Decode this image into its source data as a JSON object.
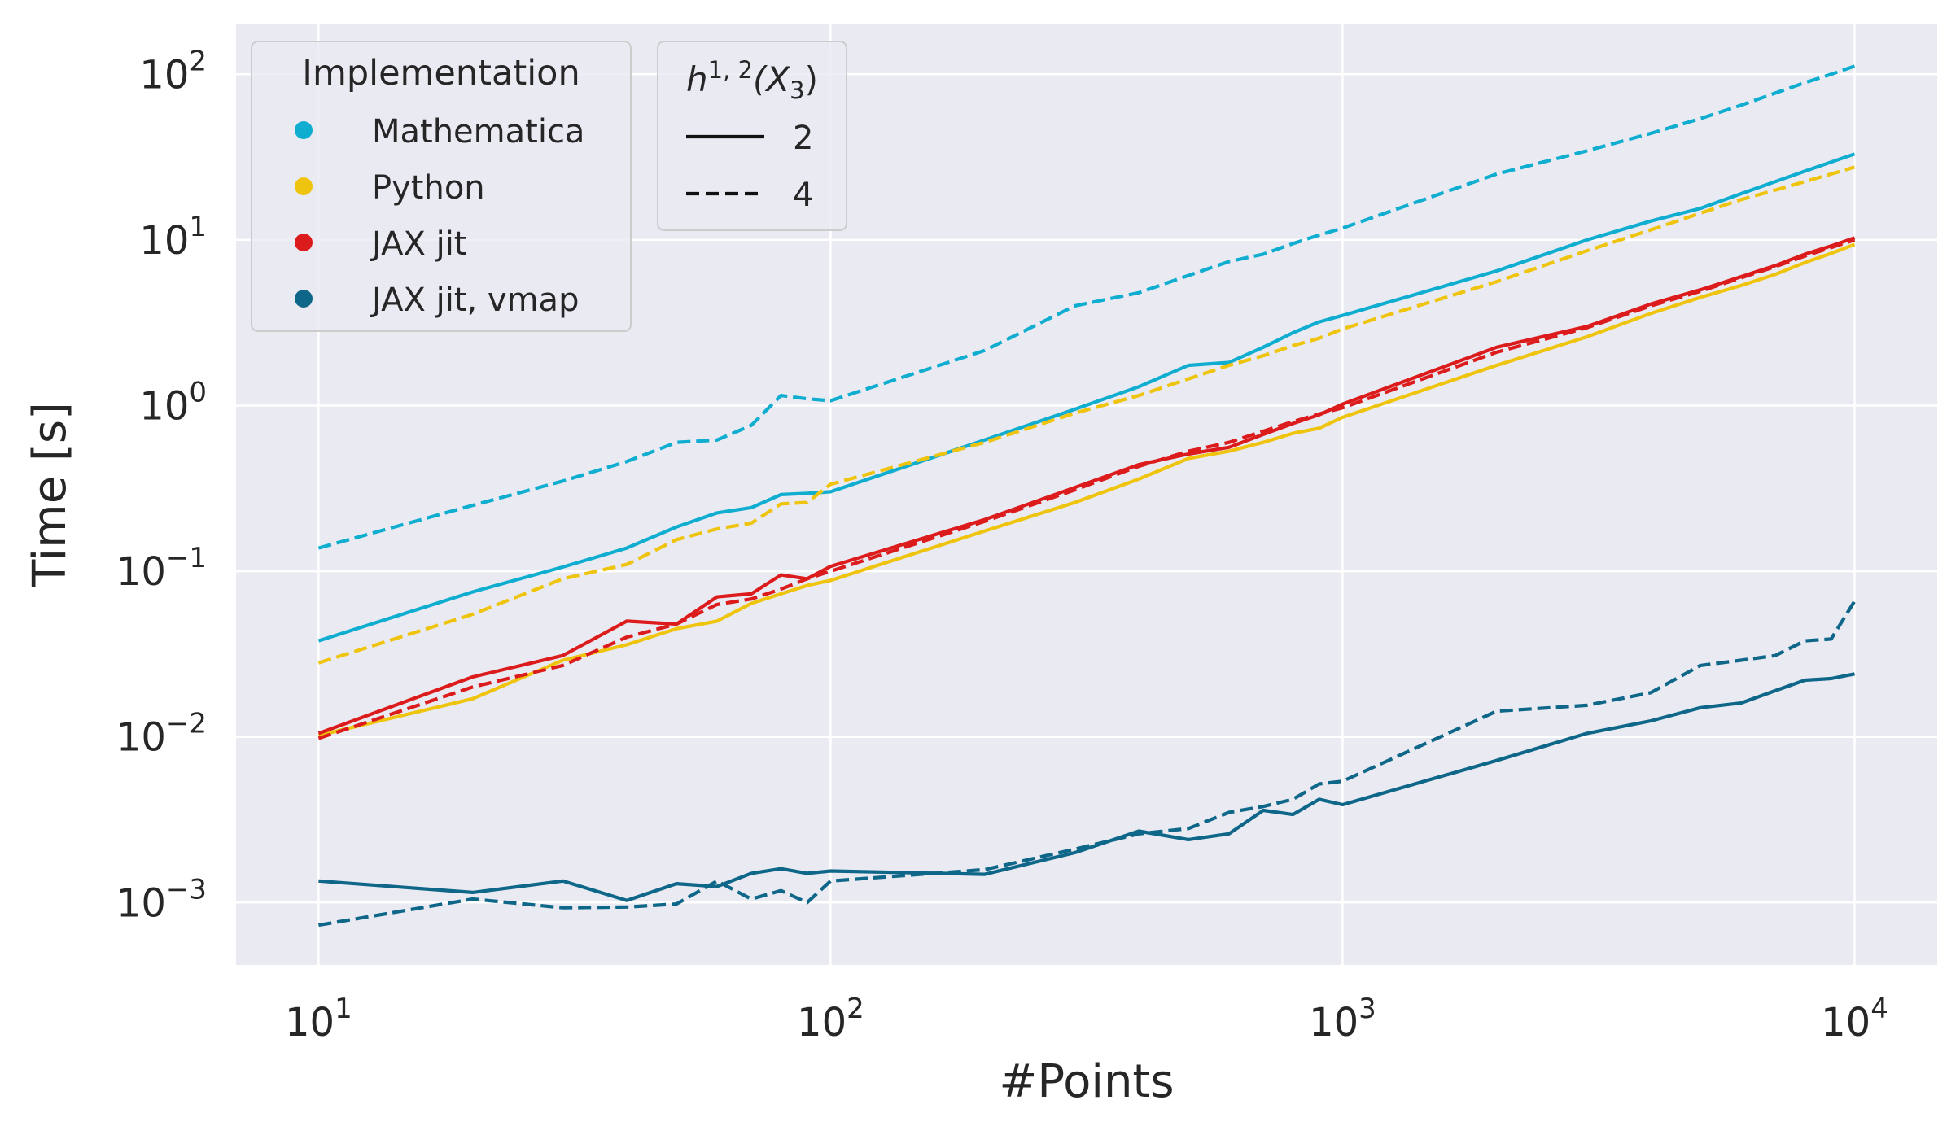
{
  "chart_data": {
    "type": "line",
    "xscale": "log",
    "yscale": "log",
    "xlim": [
      6.9,
      14500
    ],
    "ylim": [
      0.00042,
      200
    ],
    "xlabel": "#Points",
    "ylabel": "Time [s]",
    "x_ticks": [
      {
        "value": 10,
        "base": "10",
        "exp": "1"
      },
      {
        "value": 100,
        "base": "10",
        "exp": "2"
      },
      {
        "value": 1000,
        "base": "10",
        "exp": "3"
      },
      {
        "value": 10000,
        "base": "10",
        "exp": "4"
      }
    ],
    "y_ticks": [
      {
        "value": 0.001,
        "base": "10",
        "exp": "−3"
      },
      {
        "value": 0.01,
        "base": "10",
        "exp": "−2"
      },
      {
        "value": 0.1,
        "base": "10",
        "exp": "−1"
      },
      {
        "value": 1,
        "base": "10",
        "exp": "0"
      },
      {
        "value": 10,
        "base": "10",
        "exp": "1"
      },
      {
        "value": 100,
        "base": "10",
        "exp": "2"
      }
    ],
    "grid": true,
    "colors": {
      "Mathematica": "#0fadcf",
      "Python": "#efc40e",
      "JAX jit": "#dc1c1c",
      "JAX jit, vmap": "#0e6688"
    },
    "legend_implementation": {
      "title": "Implementation",
      "placement": "top-left",
      "entries": [
        "Mathematica",
        "Python",
        "JAX jit",
        "JAX jit, vmap"
      ]
    },
    "legend_h": {
      "title_base": "h",
      "title_sup": "1, 2",
      "title_paren": "(X",
      "title_sub": "3",
      "title_close": ")",
      "entries": [
        {
          "label": "2",
          "dash": "solid"
        },
        {
          "label": "4",
          "dash": "dashed"
        }
      ]
    },
    "series": [
      {
        "name": "Mathematica",
        "h": "2",
        "dash": "solid",
        "x": [
          10,
          20,
          30,
          40,
          50,
          60,
          70,
          80,
          90,
          100,
          200,
          300,
          400,
          500,
          600,
          700,
          800,
          900,
          1000,
          2000,
          3000,
          4000,
          5000,
          6000,
          7000,
          8000,
          9000,
          10000
        ],
        "y": [
          0.038,
          0.075,
          0.106,
          0.138,
          0.185,
          0.225,
          0.242,
          0.29,
          0.295,
          0.302,
          0.62,
          0.95,
          1.3,
          1.75,
          1.82,
          2.25,
          2.75,
          3.2,
          3.5,
          6.5,
          10.0,
          13.0,
          15.5,
          19.0,
          22.5,
          26.0,
          29.5,
          33.0
        ]
      },
      {
        "name": "Mathematica",
        "h": "4",
        "dash": "dashed",
        "x": [
          10,
          20,
          30,
          40,
          50,
          60,
          70,
          80,
          90,
          100,
          200,
          300,
          400,
          500,
          600,
          700,
          800,
          900,
          1000,
          2000,
          3000,
          4000,
          5000,
          6000,
          7000,
          8000,
          9000,
          10000
        ],
        "y": [
          0.138,
          0.25,
          0.35,
          0.46,
          0.6,
          0.62,
          0.76,
          1.15,
          1.1,
          1.07,
          2.15,
          4.0,
          4.8,
          6.1,
          7.4,
          8.2,
          9.5,
          10.7,
          11.8,
          25.0,
          34.5,
          44.0,
          54.0,
          65.0,
          77.0,
          89.0,
          100.0,
          112.0
        ]
      },
      {
        "name": "Python",
        "h": "2",
        "dash": "solid",
        "x": [
          10,
          20,
          30,
          40,
          50,
          60,
          70,
          80,
          90,
          100,
          200,
          300,
          400,
          500,
          600,
          700,
          800,
          900,
          1000,
          2000,
          3000,
          4000,
          5000,
          6000,
          7000,
          8000,
          9000,
          10000
        ],
        "y": [
          0.0102,
          0.017,
          0.029,
          0.036,
          0.045,
          0.05,
          0.064,
          0.073,
          0.082,
          0.088,
          0.175,
          0.26,
          0.36,
          0.48,
          0.53,
          0.6,
          0.68,
          0.73,
          0.85,
          1.75,
          2.6,
          3.6,
          4.5,
          5.3,
          6.2,
          7.3,
          8.3,
          9.4
        ]
      },
      {
        "name": "Python",
        "h": "4",
        "dash": "dashed",
        "x": [
          10,
          20,
          30,
          40,
          50,
          60,
          70,
          80,
          90,
          100,
          200,
          300,
          400,
          500,
          600,
          700,
          800,
          900,
          1000,
          2000,
          3000,
          4000,
          5000,
          6000,
          7000,
          8000,
          9000,
          10000
        ],
        "y": [
          0.028,
          0.055,
          0.09,
          0.11,
          0.155,
          0.18,
          0.195,
          0.255,
          0.26,
          0.335,
          0.6,
          0.9,
          1.15,
          1.45,
          1.75,
          2.0,
          2.3,
          2.55,
          2.9,
          5.6,
          8.6,
          11.5,
          14.5,
          17.5,
          20.0,
          22.5,
          25.0,
          27.5
        ]
      },
      {
        "name": "JAX jit",
        "h": "2",
        "dash": "solid",
        "x": [
          10,
          20,
          30,
          40,
          50,
          60,
          70,
          80,
          90,
          100,
          200,
          300,
          400,
          500,
          600,
          700,
          800,
          900,
          1000,
          2000,
          3000,
          4000,
          5000,
          6000,
          7000,
          8000,
          9000,
          10000
        ],
        "y": [
          0.0105,
          0.023,
          0.031,
          0.05,
          0.048,
          0.07,
          0.073,
          0.095,
          0.09,
          0.107,
          0.205,
          0.32,
          0.44,
          0.51,
          0.56,
          0.67,
          0.78,
          0.88,
          1.02,
          2.25,
          3.0,
          4.1,
          5.0,
          6.0,
          7.0,
          8.2,
          9.2,
          10.3
        ]
      },
      {
        "name": "JAX jit",
        "h": "4",
        "dash": "dashed",
        "x": [
          10,
          20,
          30,
          40,
          50,
          60,
          70,
          80,
          90,
          100,
          200,
          300,
          400,
          500,
          600,
          700,
          800,
          900,
          1000,
          2000,
          3000,
          4000,
          5000,
          6000,
          7000,
          8000,
          9000,
          10000
        ],
        "y": [
          0.0098,
          0.02,
          0.027,
          0.04,
          0.048,
          0.063,
          0.068,
          0.078,
          0.09,
          0.1,
          0.2,
          0.31,
          0.43,
          0.53,
          0.6,
          0.7,
          0.8,
          0.89,
          0.97,
          2.1,
          2.95,
          4.0,
          4.9,
          5.9,
          6.9,
          8.0,
          9.0,
          10.0
        ]
      },
      {
        "name": "JAX jit, vmap",
        "h": "2",
        "dash": "solid",
        "x": [
          10,
          20,
          30,
          40,
          50,
          60,
          70,
          80,
          90,
          100,
          200,
          300,
          400,
          500,
          600,
          700,
          800,
          900,
          1000,
          2000,
          3000,
          4000,
          5000,
          6000,
          7000,
          8000,
          9000,
          10000
        ],
        "y": [
          0.00135,
          0.00115,
          0.00135,
          0.00103,
          0.0013,
          0.00125,
          0.0015,
          0.0016,
          0.0015,
          0.00155,
          0.00148,
          0.002,
          0.0027,
          0.0024,
          0.0026,
          0.0036,
          0.0034,
          0.0042,
          0.0039,
          0.0072,
          0.0105,
          0.0125,
          0.015,
          0.016,
          0.019,
          0.022,
          0.0225,
          0.024
        ]
      },
      {
        "name": "JAX jit, vmap",
        "h": "4",
        "dash": "dashed",
        "x": [
          10,
          20,
          30,
          40,
          50,
          60,
          70,
          80,
          90,
          100,
          200,
          300,
          400,
          500,
          600,
          700,
          800,
          900,
          1000,
          2000,
          3000,
          4000,
          5000,
          6000,
          7000,
          8000,
          9000,
          10000
        ],
        "y": [
          0.00073,
          0.00105,
          0.00093,
          0.00094,
          0.00098,
          0.00135,
          0.00105,
          0.00118,
          0.001,
          0.00135,
          0.00158,
          0.0021,
          0.0026,
          0.0028,
          0.0035,
          0.0038,
          0.0042,
          0.0052,
          0.0054,
          0.0143,
          0.0155,
          0.0185,
          0.027,
          0.029,
          0.031,
          0.038,
          0.039,
          0.066
        ]
      }
    ]
  }
}
